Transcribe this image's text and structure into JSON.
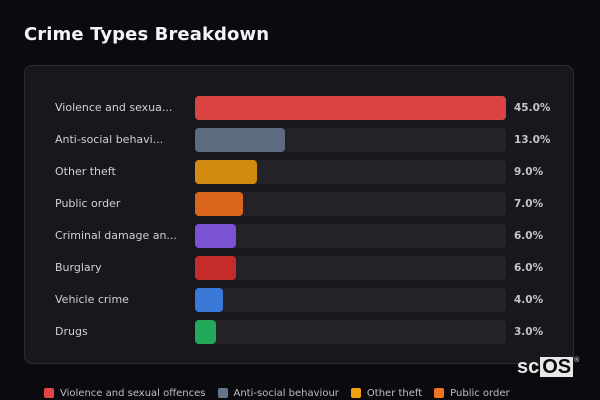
{
  "header": {
    "title": "Crime Types Breakdown"
  },
  "chart_data": {
    "type": "bar",
    "orientation": "horizontal",
    "title": "Crime Types Breakdown",
    "xlabel": "",
    "ylabel": "",
    "xlim": [
      0,
      45
    ],
    "grid": false,
    "legend_position": "bottom",
    "categories": [
      "Violence and sexual offences",
      "Anti-social behaviour",
      "Other theft",
      "Public order",
      "Criminal damage and arson",
      "Burglary",
      "Vehicle crime",
      "Drugs"
    ],
    "display_labels": [
      "Violence and sexua...",
      "Anti-social behavi...",
      "Other theft",
      "Public order",
      "Criminal damage an...",
      "Burglary",
      "Vehicle crime",
      "Drugs"
    ],
    "values": [
      45.0,
      13.0,
      9.0,
      7.0,
      6.0,
      6.0,
      4.0,
      3.0
    ],
    "value_labels": [
      "45.0%",
      "13.0%",
      "9.0%",
      "7.0%",
      "6.0%",
      "6.0%",
      "4.0%",
      "3.0%"
    ],
    "colors": [
      "#d94343",
      "#5d6b80",
      "#d48b12",
      "#d9661c",
      "#7a52d4",
      "#c42b2b",
      "#3a78d8",
      "#22a95a"
    ]
  },
  "legend": {
    "items": [
      {
        "label": "Violence and sexual offences",
        "color": "#e04646"
      },
      {
        "label": "Anti-social behaviour",
        "color": "#64748b"
      },
      {
        "label": "Other theft",
        "color": "#f0a011"
      },
      {
        "label": "Public order",
        "color": "#f27422"
      }
    ]
  },
  "watermark": {
    "prefix": "sc",
    "boxed": "OS",
    "mark": "®"
  }
}
